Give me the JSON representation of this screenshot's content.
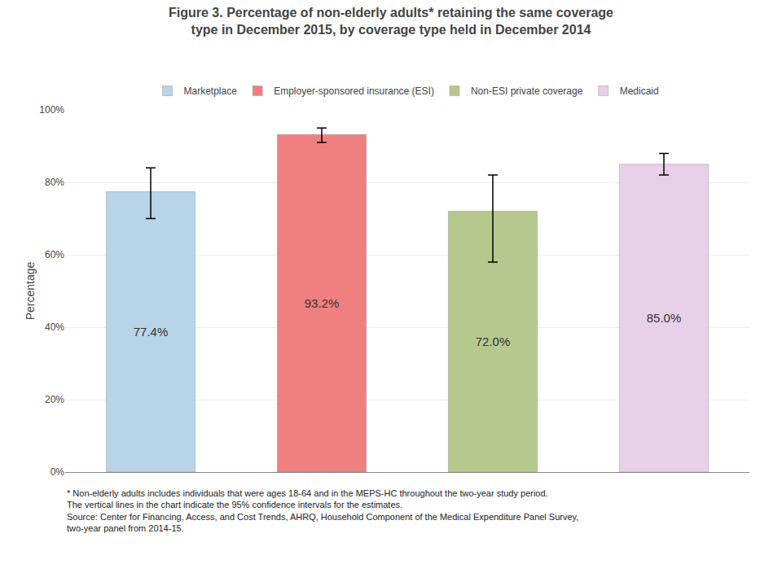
{
  "chart_data": {
    "type": "bar",
    "title": "Figure 3. Percentage of non-elderly adults* retaining the same coverage\ntype in December 2015, by coverage type held in December 2014",
    "ylabel": "Percentage",
    "categories": [
      "Marketplace",
      "Employer-sponsored insurance (ESI)",
      "Non-ESI private coverage",
      "Medicaid"
    ],
    "values": [
      77.4,
      93.2,
      72.0,
      85.0
    ],
    "value_labels": [
      "77.4%",
      "93.2%",
      "72.0%",
      "85.0%"
    ],
    "errors_low": [
      7.4,
      2.2,
      14.0,
      3.0
    ],
    "errors_high": [
      6.6,
      1.8,
      10.0,
      3.0
    ],
    "colors": [
      "#b8d4e8",
      "#f08080",
      "#b5c98e",
      "#e8d0e8"
    ],
    "ylim": [
      0,
      100
    ],
    "yticks": [
      {
        "value": 0,
        "label": "0%"
      },
      {
        "value": 20,
        "label": "20%"
      },
      {
        "value": 40,
        "label": "40%"
      },
      {
        "value": 60,
        "label": "60%"
      },
      {
        "value": 80,
        "label": "80%"
      },
      {
        "value": 100,
        "label": "100%"
      }
    ],
    "grid": true,
    "data_labels": true,
    "legend": "top",
    "tick_labels": "y",
    "annotations": [
      "* Non-elderly adults includes individuals that were ages 18-64 and in the MEPS-HC throughout the two-year study period.\nThe vertical lines in the chart indicate the 95% confidence intervals for the estimates.\nSource: Center for Financing, Access, and Cost Trends, AHRQ, Household Component of the Medical Expenditure Panel Survey,\ntwo-year panel from 2014-15."
    ]
  }
}
